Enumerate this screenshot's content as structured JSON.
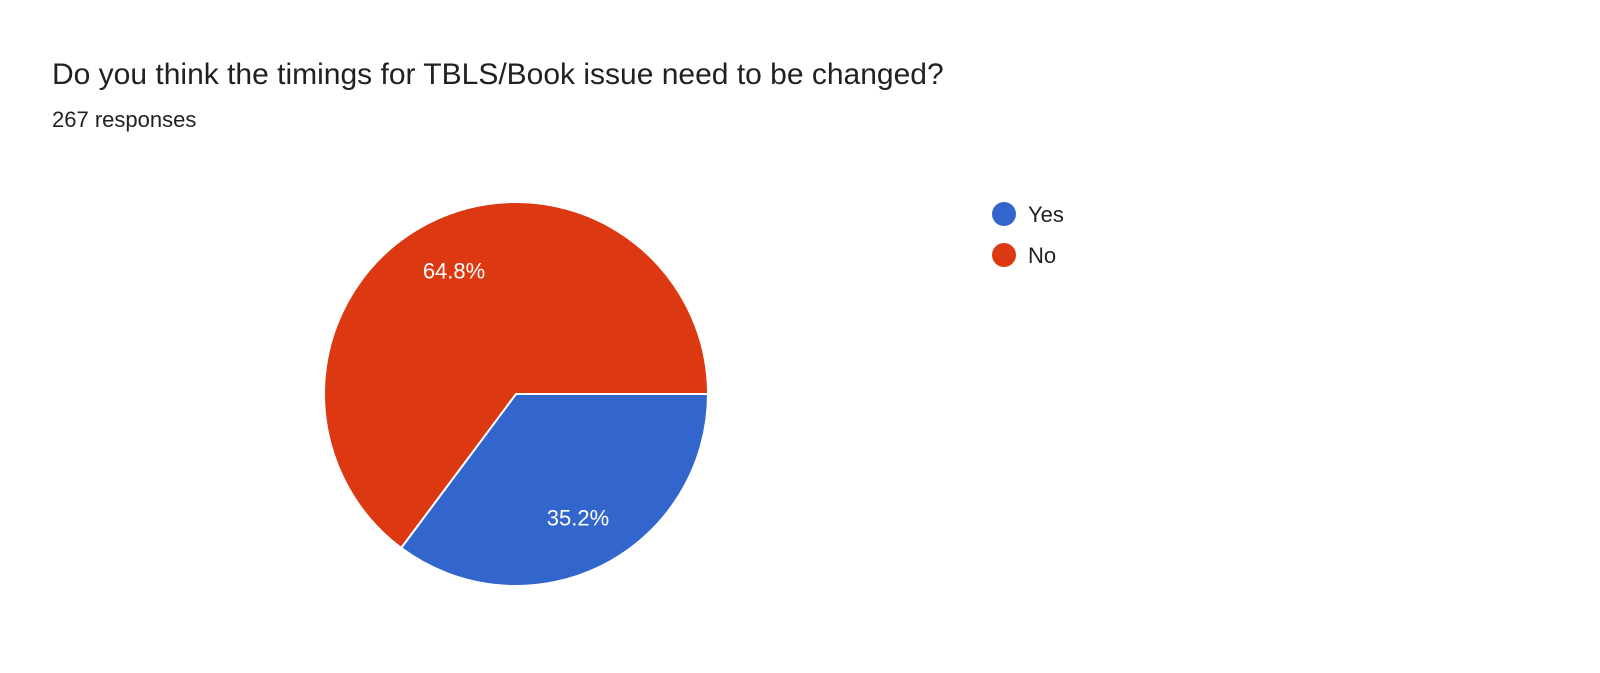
{
  "header": {
    "title": "Do you think the timings for TBLS/Book issue need to be changed?",
    "subtitle": "267 responses"
  },
  "chart_data": {
    "type": "pie",
    "title": "Do you think the timings for TBLS/Book issue need to be changed?",
    "total_responses": 267,
    "categories": [
      "Yes",
      "No"
    ],
    "values": [
      35.2,
      64.8
    ],
    "labels": [
      "35.2%",
      "64.8%"
    ],
    "colors": [
      "#3366cc",
      "#dc3912"
    ],
    "legend_position": "right",
    "start": "3 o'clock, clockwise"
  }
}
